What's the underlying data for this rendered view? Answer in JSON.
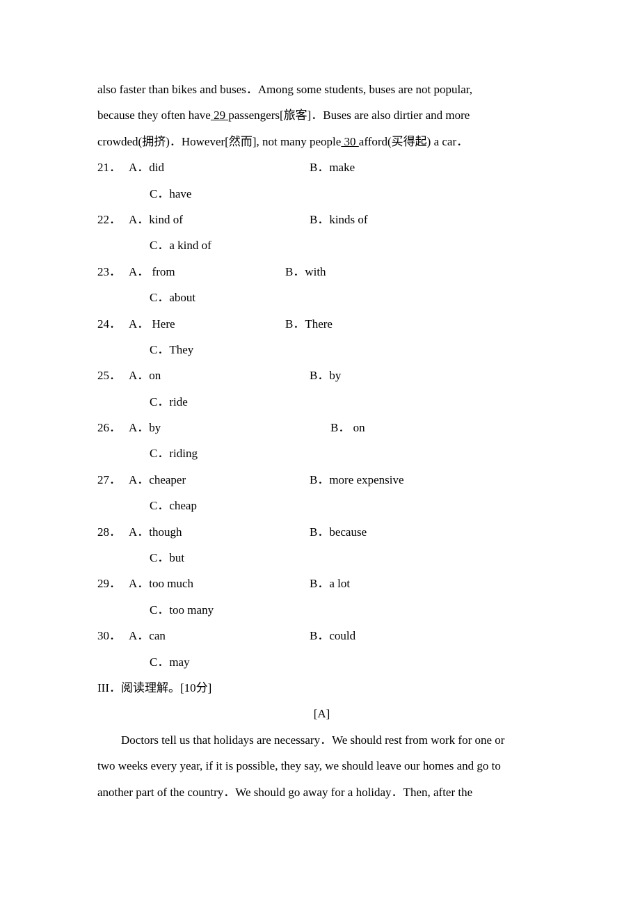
{
  "font_color": "#000000",
  "background_color": "#ffffff",
  "font_size": 17,
  "line_height": 2.2,
  "paragraphs": {
    "line1": "also faster than bikes and buses．Among some students, buses are not popular,",
    "line2_pre": "because they often have",
    "line2_blank": "  29  ",
    "line2_post": "passengers[旅客]．Buses are also dirtier and more",
    "line3_pre": "crowded(拥挤)．However[然而], not many people",
    "line3_blank": "  30  ",
    "line3_post": "afford(买得起) a car．"
  },
  "questions": [
    {
      "num": "21．",
      "a": "A．did",
      "b": "B．make",
      "c": "C．have"
    },
    {
      "num": "22．",
      "a": "A．kind of",
      "b": "B．kinds of",
      "c": "C．a kind of"
    },
    {
      "num": "23．",
      "a": "A． from",
      "b": "B．with",
      "c": "C．about"
    },
    {
      "num": "24．",
      "a": "A． Here",
      "b": "B．There",
      "c": "C．They"
    },
    {
      "num": "25．",
      "a": "A．on",
      "b": "B．by",
      "c": "C．ride"
    },
    {
      "num": "26．",
      "a": "A．by",
      "b": "B．     on",
      "c": "C．riding"
    },
    {
      "num": "27．",
      "a": "A．cheaper",
      "b": "B．more expensive",
      "c": "C．cheap"
    },
    {
      "num": "28．",
      "a": "A．though",
      "b": "B．because",
      "c": "C．but"
    },
    {
      "num": "29．",
      "a": "A．too much",
      "b": "B．a lot",
      "c": "C．too many"
    },
    {
      "num": "30．",
      "a": "A．can",
      "b": "B．could",
      "c": "C．may"
    }
  ],
  "section3": "III．阅读理解。[10分]",
  "section_a": "[A]",
  "reading": {
    "line1": "Doctors tell us that holidays are necessary．We should rest from work for one or",
    "line2": "two weeks every year, if it is possible, they say, we should leave our homes and go to",
    "line3": "another part of the country．We should go away for a holiday．Then, after the"
  }
}
